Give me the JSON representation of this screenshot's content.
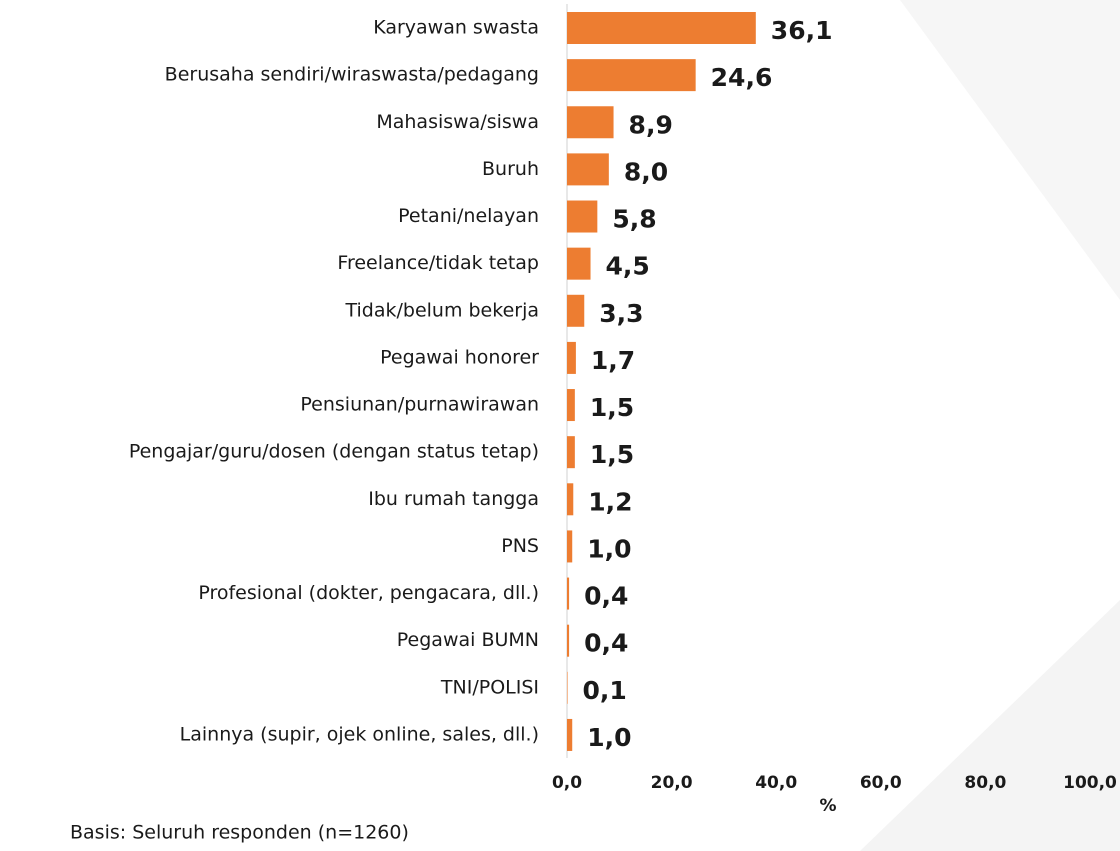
{
  "chart_data": {
    "type": "bar",
    "orientation": "horizontal",
    "categories": [
      "Karyawan swasta",
      "Berusaha sendiri/wiraswasta/pedagang",
      "Mahasiswa/siswa",
      "Buruh",
      "Petani/nelayan",
      "Freelance/tidak tetap",
      "Tidak/belum bekerja",
      "Pegawai honorer",
      "Pensiunan/purnawirawan",
      "Pengajar/guru/dosen (dengan status tetap)",
      "Ibu rumah tangga",
      "PNS",
      "Profesional (dokter, pengacara, dll.)",
      "Pegawai BUMN",
      "TNI/POLISI",
      "Lainnya (supir, ojek online, sales, dll.)"
    ],
    "values": [
      36.1,
      24.6,
      8.9,
      8.0,
      5.8,
      4.5,
      3.3,
      1.7,
      1.5,
      1.5,
      1.2,
      1.0,
      0.4,
      0.4,
      0.1,
      1.0
    ],
    "value_labels": [
      "36,1",
      "24,6",
      "8,9",
      "8,0",
      "5,8",
      "4,5",
      "3,3",
      "1,7",
      "1,5",
      "1,5",
      "1,2",
      "1,0",
      "0,4",
      "0,4",
      "0,1",
      "1,0"
    ],
    "color": "#ed7d31",
    "xlim": [
      0,
      100
    ],
    "xticks": [
      {
        "value": 0,
        "label": "0,0"
      },
      {
        "value": 20,
        "label": "20,0"
      },
      {
        "value": 40,
        "label": "40,0"
      },
      {
        "value": 60,
        "label": "60,0"
      },
      {
        "value": 80,
        "label": "80,0"
      },
      {
        "value": 100,
        "label": "100,0"
      }
    ],
    "xlabel": "%",
    "note": "Basis: Seluruh responden (n=1260)"
  }
}
